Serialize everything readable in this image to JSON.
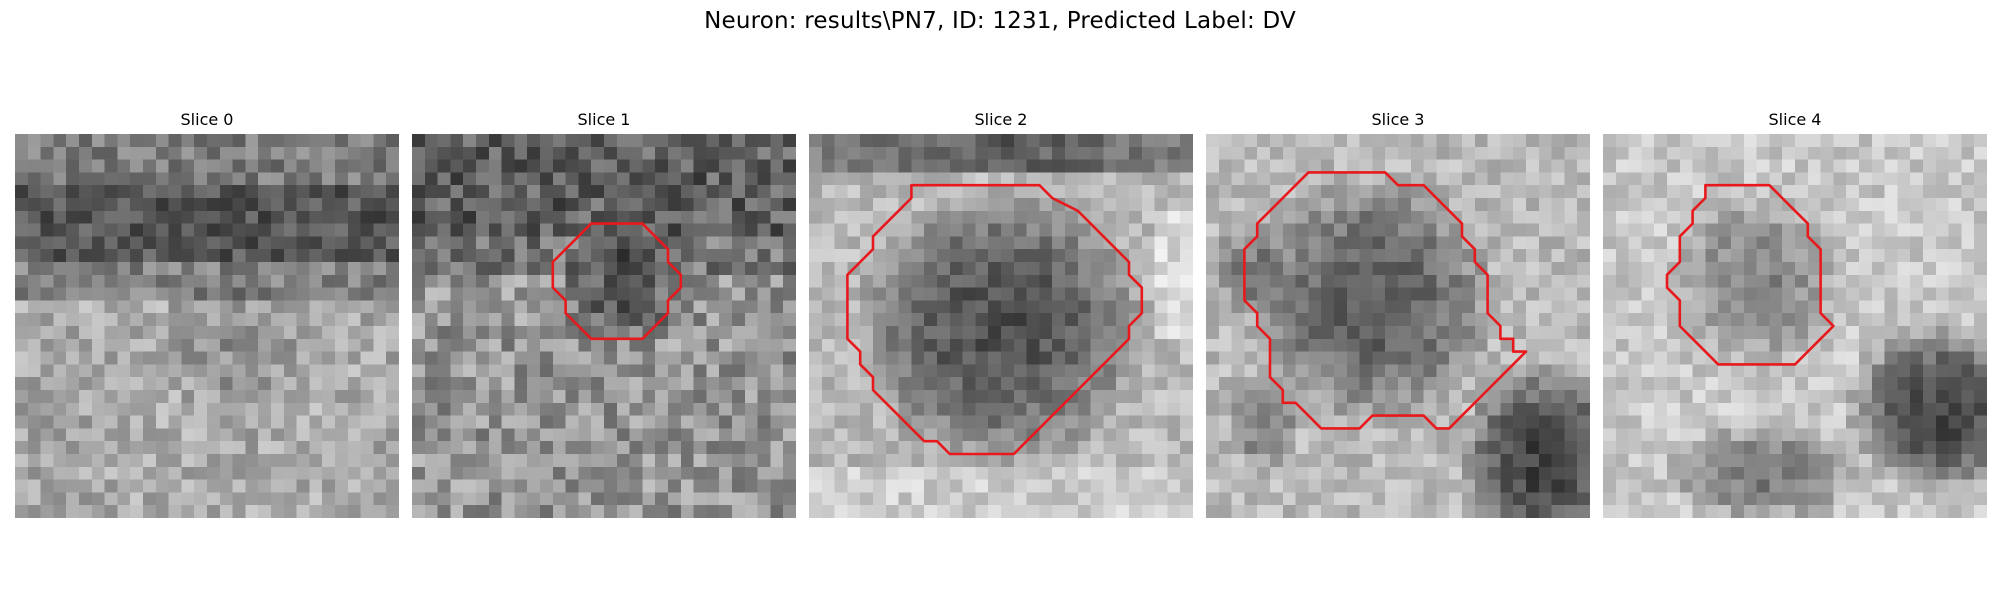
{
  "figure": {
    "title": "Neuron: results\\PN7, ID: 1231, Predicted Label: DV",
    "outline_color": "#e8191c"
  },
  "slices": [
    {
      "label": "Slice 0",
      "contour": []
    },
    {
      "label": "Slice 1",
      "contour": [
        [
          14,
          7
        ],
        [
          18,
          7
        ],
        [
          19,
          8
        ],
        [
          20,
          9
        ],
        [
          20,
          10
        ],
        [
          21,
          11
        ],
        [
          21,
          12
        ],
        [
          20,
          13
        ],
        [
          20,
          14
        ],
        [
          19,
          15
        ],
        [
          18,
          16
        ],
        [
          17,
          16
        ],
        [
          15,
          16
        ],
        [
          14,
          16
        ],
        [
          13,
          15
        ],
        [
          12,
          14
        ],
        [
          12,
          13
        ],
        [
          11,
          12
        ],
        [
          11,
          11
        ],
        [
          11,
          10
        ],
        [
          12,
          9
        ],
        [
          13,
          8
        ]
      ]
    },
    {
      "label": "Slice 2",
      "contour": [
        [
          8,
          4
        ],
        [
          13,
          4
        ],
        [
          18,
          4
        ],
        [
          19,
          5
        ],
        [
          21,
          6
        ],
        [
          22,
          7
        ],
        [
          23,
          8
        ],
        [
          24,
          9
        ],
        [
          25,
          10
        ],
        [
          25,
          11
        ],
        [
          26,
          12
        ],
        [
          26,
          13
        ],
        [
          26,
          14
        ],
        [
          25,
          15
        ],
        [
          25,
          16
        ],
        [
          24,
          17
        ],
        [
          23,
          18
        ],
        [
          22,
          19
        ],
        [
          21,
          20
        ],
        [
          20,
          21
        ],
        [
          19,
          22
        ],
        [
          18,
          23
        ],
        [
          17,
          24
        ],
        [
          16,
          25
        ],
        [
          14,
          25
        ],
        [
          13,
          25
        ],
        [
          11,
          25
        ],
        [
          10,
          24
        ],
        [
          9,
          24
        ],
        [
          8,
          23
        ],
        [
          7,
          22
        ],
        [
          6,
          21
        ],
        [
          5,
          20
        ],
        [
          5,
          19
        ],
        [
          4,
          18
        ],
        [
          4,
          17
        ],
        [
          3,
          16
        ],
        [
          3,
          15
        ],
        [
          3,
          14
        ],
        [
          3,
          13
        ],
        [
          3,
          12
        ],
        [
          3,
          11
        ],
        [
          4,
          10
        ],
        [
          5,
          9
        ],
        [
          5,
          8
        ],
        [
          6,
          7
        ],
        [
          7,
          6
        ],
        [
          8,
          5
        ]
      ]
    },
    {
      "label": "Slice 3",
      "contour": [
        [
          8,
          3
        ],
        [
          14,
          3
        ],
        [
          15,
          4
        ],
        [
          17,
          4
        ],
        [
          18,
          5
        ],
        [
          19,
          6
        ],
        [
          20,
          7
        ],
        [
          20,
          8
        ],
        [
          21,
          9
        ],
        [
          21,
          10
        ],
        [
          22,
          11
        ],
        [
          22,
          12
        ],
        [
          22,
          13
        ],
        [
          22,
          14
        ],
        [
          23,
          15
        ],
        [
          23,
          16
        ],
        [
          24,
          16
        ],
        [
          24,
          17
        ],
        [
          25,
          17
        ],
        [
          24,
          18
        ],
        [
          23,
          19
        ],
        [
          22,
          20
        ],
        [
          21,
          21
        ],
        [
          20,
          22
        ],
        [
          19,
          23
        ],
        [
          18,
          23
        ],
        [
          17,
          22
        ],
        [
          16,
          22
        ],
        [
          14,
          22
        ],
        [
          13,
          22
        ],
        [
          12,
          23
        ],
        [
          11,
          23
        ],
        [
          9,
          23
        ],
        [
          8,
          22
        ],
        [
          7,
          21
        ],
        [
          6,
          21
        ],
        [
          6,
          20
        ],
        [
          5,
          19
        ],
        [
          5,
          18
        ],
        [
          5,
          17
        ],
        [
          5,
          16
        ],
        [
          4,
          15
        ],
        [
          4,
          14
        ],
        [
          3,
          13
        ],
        [
          3,
          12
        ],
        [
          3,
          11
        ],
        [
          3,
          10
        ],
        [
          3,
          9
        ],
        [
          4,
          8
        ],
        [
          4,
          7
        ],
        [
          5,
          6
        ],
        [
          6,
          5
        ],
        [
          7,
          4
        ]
      ]
    },
    {
      "label": "Slice 4",
      "contour": [
        [
          8,
          4
        ],
        [
          13,
          4
        ],
        [
          14,
          5
        ],
        [
          15,
          6
        ],
        [
          16,
          7
        ],
        [
          16,
          8
        ],
        [
          17,
          9
        ],
        [
          17,
          10
        ],
        [
          17,
          11
        ],
        [
          17,
          12
        ],
        [
          17,
          13
        ],
        [
          17,
          14
        ],
        [
          18,
          15
        ],
        [
          17,
          16
        ],
        [
          16,
          17
        ],
        [
          15,
          18
        ],
        [
          9,
          18
        ],
        [
          8,
          17
        ],
        [
          7,
          16
        ],
        [
          6,
          15
        ],
        [
          6,
          14
        ],
        [
          6,
          13
        ],
        [
          5,
          12
        ],
        [
          5,
          11
        ],
        [
          6,
          10
        ],
        [
          6,
          9
        ],
        [
          6,
          8
        ],
        [
          7,
          7
        ],
        [
          7,
          6
        ],
        [
          8,
          5
        ]
      ]
    }
  ]
}
